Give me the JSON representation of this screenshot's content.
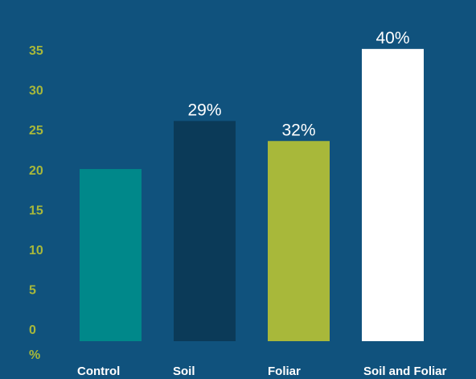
{
  "chart_data": {
    "type": "bar",
    "unit_label": "%",
    "yticks": [
      "0",
      "5",
      "10",
      "15",
      "20",
      "25",
      "30",
      "35"
    ],
    "ylim": [
      0,
      35
    ],
    "grid": false,
    "categories": [
      "Control",
      "Soil",
      "Foliar",
      "Soil and Foliar"
    ],
    "values": [
      21.5,
      27.5,
      25,
      36.5
    ],
    "data_labels": [
      "",
      "29%",
      "32%",
      "40%"
    ],
    "colors": [
      "#00888a",
      "#0b3a58",
      "#a8b83a",
      "#ffffff"
    ]
  }
}
